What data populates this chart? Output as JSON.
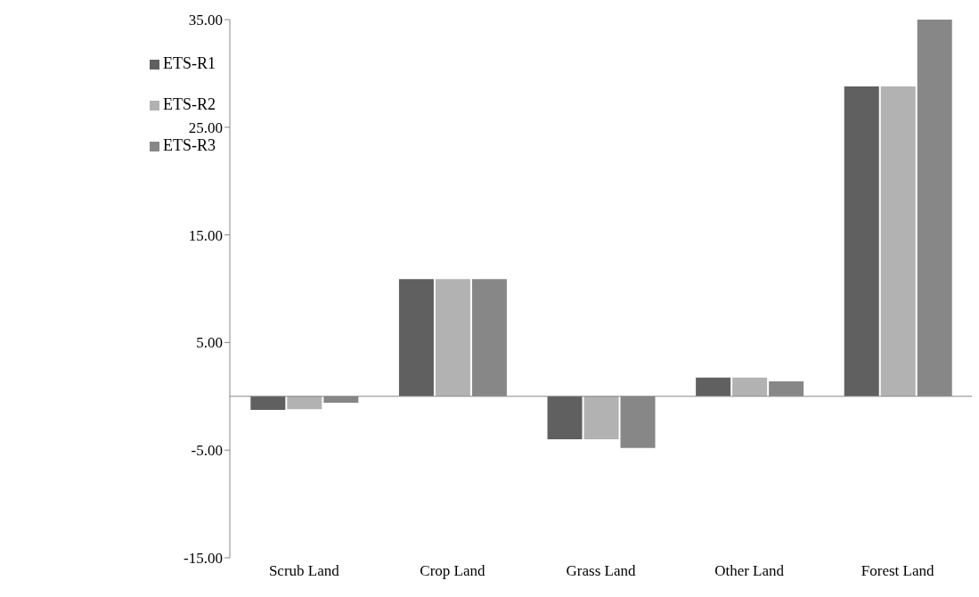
{
  "chart_data": {
    "type": "bar",
    "categories": [
      "Scrub Land",
      "Crop Land",
      "Grass Land",
      "Other Land",
      "Forest Land"
    ],
    "series": [
      {
        "name": "ETS-R1",
        "color": "#606060",
        "values": [
          -1.25,
          10.9,
          -4.0,
          1.75,
          28.8
        ]
      },
      {
        "name": "ETS-R2",
        "color": "#b2b2b2",
        "values": [
          -1.2,
          10.9,
          -4.0,
          1.75,
          28.8
        ]
      },
      {
        "name": "ETS-R3",
        "color": "#878787",
        "values": [
          -0.6,
          10.9,
          -4.8,
          1.4,
          35.0
        ]
      }
    ],
    "ylim": [
      -15,
      35
    ],
    "yticks": [
      {
        "value": -15,
        "label": "-15.00"
      },
      {
        "value": -5,
        "label": "-5.00"
      },
      {
        "value": 5,
        "label": "5.00"
      },
      {
        "value": 15,
        "label": "15.00"
      },
      {
        "value": 25,
        "label": "25.00"
      },
      {
        "value": 35,
        "label": "35.00"
      }
    ],
    "grid": false,
    "legend": "top left"
  }
}
